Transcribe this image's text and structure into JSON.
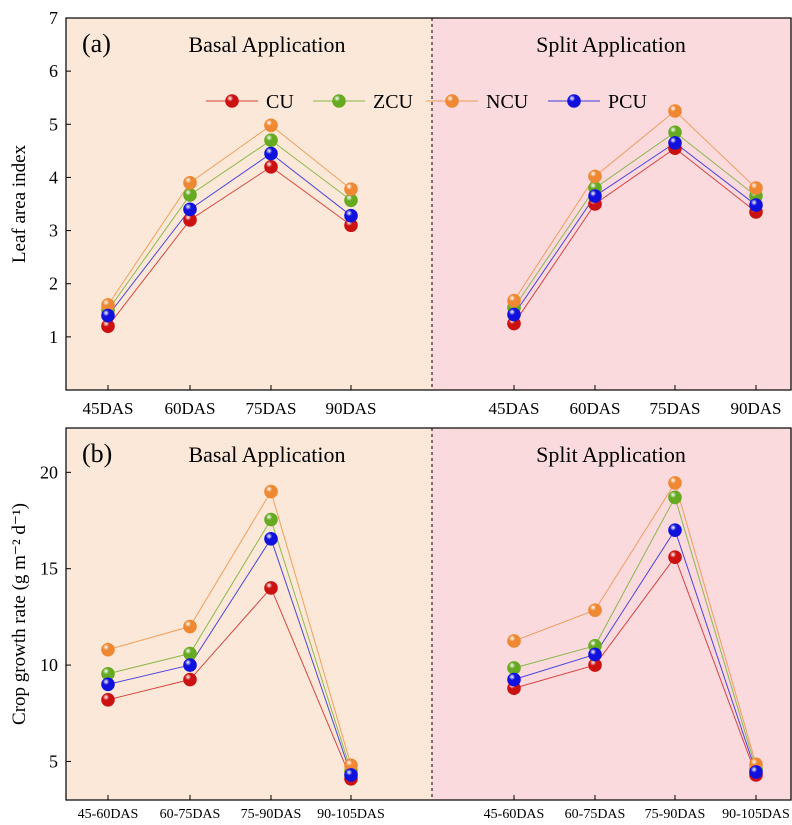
{
  "colors": {
    "basal_bg": "#fce8d8",
    "split_bg": "#fadadd",
    "CU": "#cc1111",
    "ZCU": "#66aa22",
    "NCU": "#ee8833",
    "PCU": "#1111dd"
  },
  "chart_data": [
    {
      "type": "line",
      "panel_label": "(a)",
      "ylabel": "Leaf area index",
      "ylim": [
        0,
        7
      ],
      "yticks": [
        "1",
        "2",
        "3",
        "4",
        "5",
        "6",
        "7"
      ],
      "legend": {
        "placement": "top-center",
        "entries": [
          "CU",
          "ZCU",
          "NCU",
          "PCU"
        ]
      },
      "divider": "dashed",
      "groups": [
        {
          "title": "Basal Application",
          "categories": [
            "45DAS",
            "60DAS",
            "75DAS",
            "90DAS"
          ],
          "series": [
            {
              "name": "CU",
              "values": [
                1.2,
                3.2,
                4.2,
                3.1
              ]
            },
            {
              "name": "ZCU",
              "values": [
                1.5,
                3.67,
                4.7,
                3.57
              ]
            },
            {
              "name": "NCU",
              "values": [
                1.6,
                3.9,
                4.98,
                3.78
              ]
            },
            {
              "name": "PCU",
              "values": [
                1.4,
                3.4,
                4.45,
                3.28
              ]
            }
          ]
        },
        {
          "title": "Split Application",
          "categories": [
            "45DAS",
            "60DAS",
            "75DAS",
            "90DAS"
          ],
          "series": [
            {
              "name": "CU",
              "values": [
                1.25,
                3.5,
                4.55,
                3.35
              ]
            },
            {
              "name": "ZCU",
              "values": [
                1.55,
                3.8,
                4.85,
                3.65
              ]
            },
            {
              "name": "NCU",
              "values": [
                1.68,
                4.02,
                5.25,
                3.8
              ]
            },
            {
              "name": "PCU",
              "values": [
                1.42,
                3.65,
                4.65,
                3.48
              ]
            }
          ]
        }
      ]
    },
    {
      "type": "line",
      "panel_label": "(b)",
      "ylabel": "Crop growth rate (g m⁻² d⁻¹)",
      "ylim": [
        3,
        22.3
      ],
      "yticks": [
        "5",
        "10",
        "15",
        "20"
      ],
      "divider": "dashed",
      "groups": [
        {
          "title": "Basal Application",
          "categories": [
            "45-60DAS",
            "60-75DAS",
            "75-90DAS",
            "90-105DAS"
          ],
          "series": [
            {
              "name": "CU",
              "values": [
                8.2,
                9.25,
                14.0,
                4.1
              ]
            },
            {
              "name": "ZCU",
              "values": [
                9.55,
                10.6,
                17.55,
                4.5
              ]
            },
            {
              "name": "NCU",
              "values": [
                10.8,
                12.0,
                19.0,
                4.8
              ]
            },
            {
              "name": "PCU",
              "values": [
                9.0,
                10.0,
                16.55,
                4.3
              ]
            }
          ]
        },
        {
          "title": "Split Application",
          "categories": [
            "45-60DAS",
            "60-75DAS",
            "75-90DAS",
            "90-105DAS"
          ],
          "series": [
            {
              "name": "CU",
              "values": [
                8.8,
                10.0,
                15.6,
                4.3
              ]
            },
            {
              "name": "ZCU",
              "values": [
                9.85,
                11.0,
                18.7,
                4.6
              ]
            },
            {
              "name": "NCU",
              "values": [
                11.25,
                12.85,
                19.45,
                4.85
              ]
            },
            {
              "name": "PCU",
              "values": [
                9.25,
                10.55,
                17.0,
                4.45
              ]
            }
          ]
        }
      ]
    }
  ]
}
